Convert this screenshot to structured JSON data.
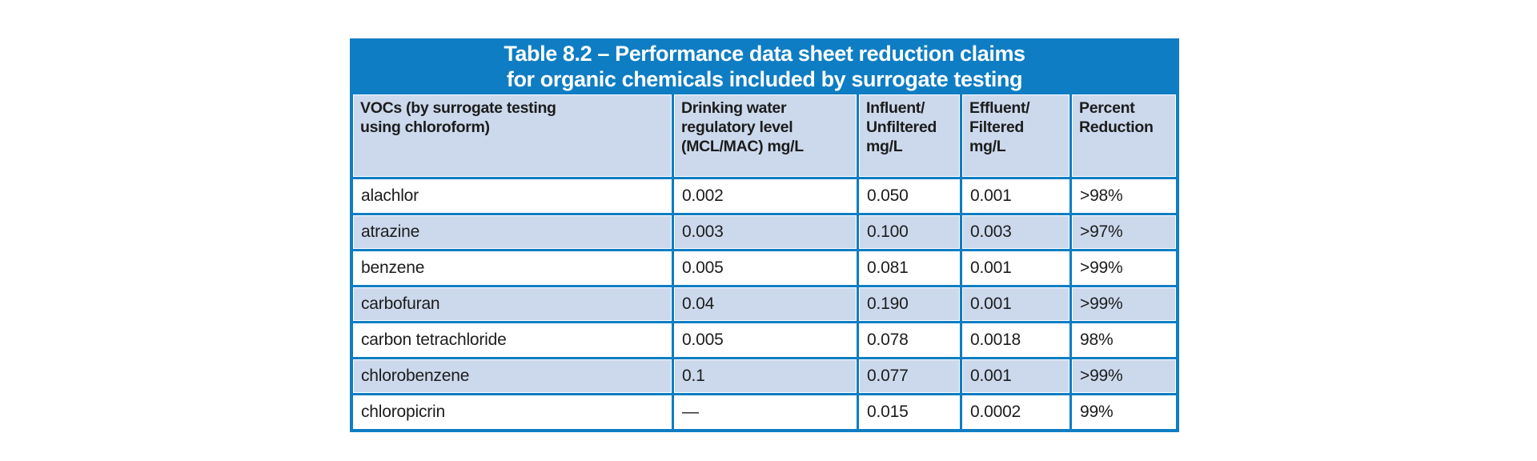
{
  "page": {
    "background": "#ffffff"
  },
  "colors": {
    "table_blue": "#0e7dc3",
    "row_light_blue": "#ccd9ed",
    "row_white": "#ffffff",
    "title_text": "#ffffff",
    "body_text": "#1c1c1c"
  },
  "chart_data": {
    "type": "table",
    "title": "Table 8.2 – Performance data sheet reduction claims for organic chemicals included by surrogate testing",
    "title_lines": [
      "Table 8.2 – Performance data sheet reduction claims",
      "for organic chemicals included by surrogate testing"
    ],
    "columns": [
      "VOCs (by surrogate testing\nusing chloroform)",
      "Drinking water\nregulatory level\n(MCL/MAC) mg/L",
      "Influent/\nUnfiltered\nmg/L",
      "Effluent/\nFiltered\nmg/L",
      "Percent\nReduction"
    ],
    "rows": [
      [
        "alachlor",
        "0.002",
        "0.050",
        "0.001",
        ">98%"
      ],
      [
        "atrazine",
        "0.003",
        "0.100",
        "0.003",
        ">97%"
      ],
      [
        "benzene",
        "0.005",
        "0.081",
        "0.001",
        ">99%"
      ],
      [
        "carbofuran",
        "0.04",
        "0.190",
        "0.001",
        ">99%"
      ],
      [
        "carbon tetrachloride",
        "0.005",
        "0.078",
        "0.0018",
        "98%"
      ],
      [
        "chlorobenzene",
        "0.1",
        "0.077",
        "0.001",
        ">99%"
      ],
      [
        "chloropicrin",
        "—",
        "0.015",
        "0.0002",
        "99%"
      ]
    ]
  }
}
